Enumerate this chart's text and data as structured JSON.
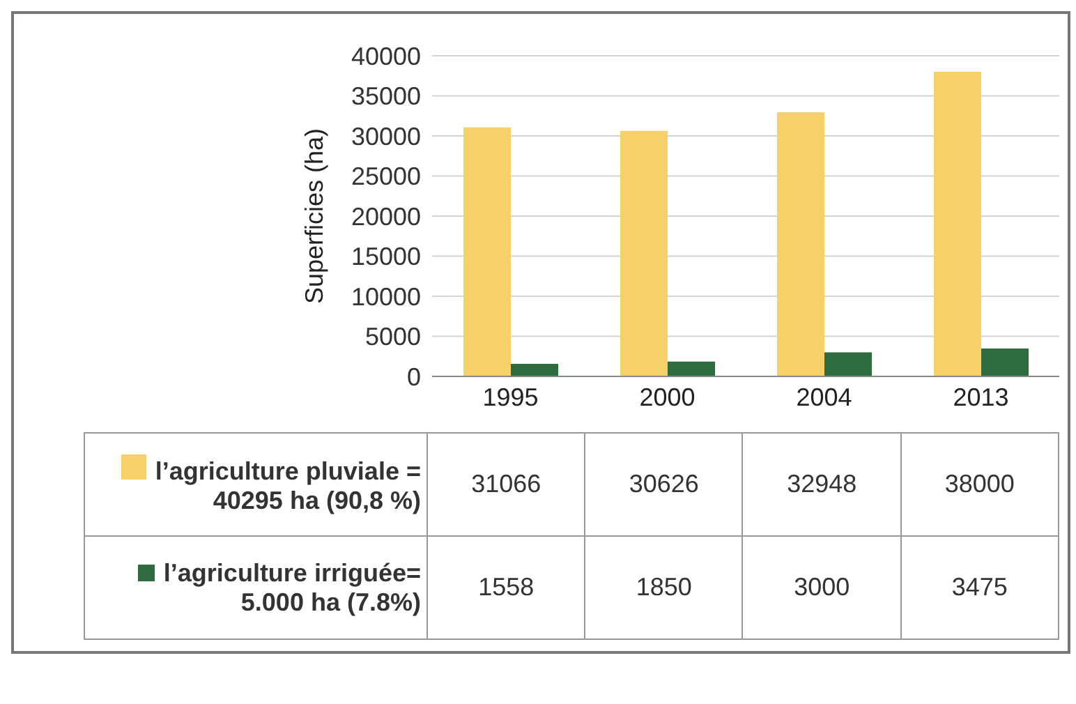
{
  "chart_data": {
    "type": "bar",
    "ylabel": "Superficies (ha)",
    "categories": [
      "1995",
      "2000",
      "2004",
      "2013"
    ],
    "series": [
      {
        "name": "l’agriculture pluviale = 40295 ha (90,8 %)",
        "color": "#f5d06b",
        "values": [
          31066,
          30626,
          32948,
          38000
        ]
      },
      {
        "name": "l’agriculture irriguée= 5.000 ha (7.8%)",
        "color": "#2e6b3e",
        "values": [
          1558,
          1850,
          3000,
          3475
        ]
      }
    ],
    "ylim": [
      0,
      40000
    ],
    "yticks": [
      0,
      5000,
      10000,
      15000,
      20000,
      25000,
      30000,
      35000,
      40000
    ],
    "grid": "y",
    "legend": "bottom",
    "data_labels": true
  }
}
